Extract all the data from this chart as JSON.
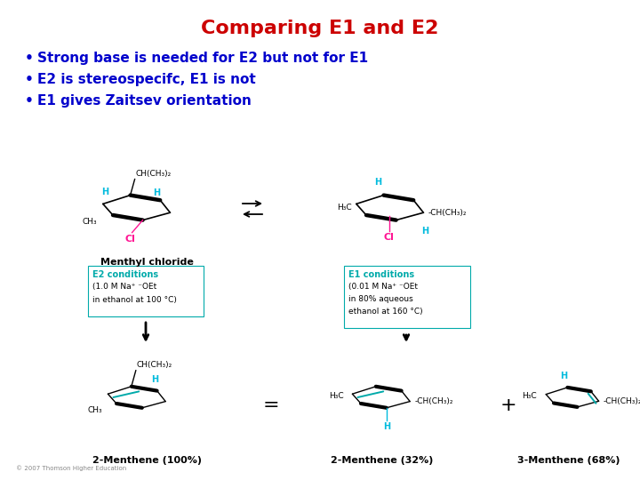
{
  "title": "Comparing E1 and E2",
  "title_color": "#CC0000",
  "title_fontsize": 16,
  "bullet_color": "#0000CC",
  "bullet_fontsize": 11,
  "bullets": [
    "Strong base is needed for E2 but not for E1",
    "E2 is stereospecifc, E1 is not",
    "E1 gives Zaitsev orientation"
  ],
  "background_color": "#FFFFFF",
  "figure_width": 7.2,
  "figure_height": 5.4,
  "dpi": 100,
  "black": "#000000",
  "cyan_H": "#00BBDD",
  "pink_Cl": "#FF1493",
  "teal_bond": "#00AAAA",
  "teal_box": "#00AAAA",
  "gray_copy": "#888888"
}
